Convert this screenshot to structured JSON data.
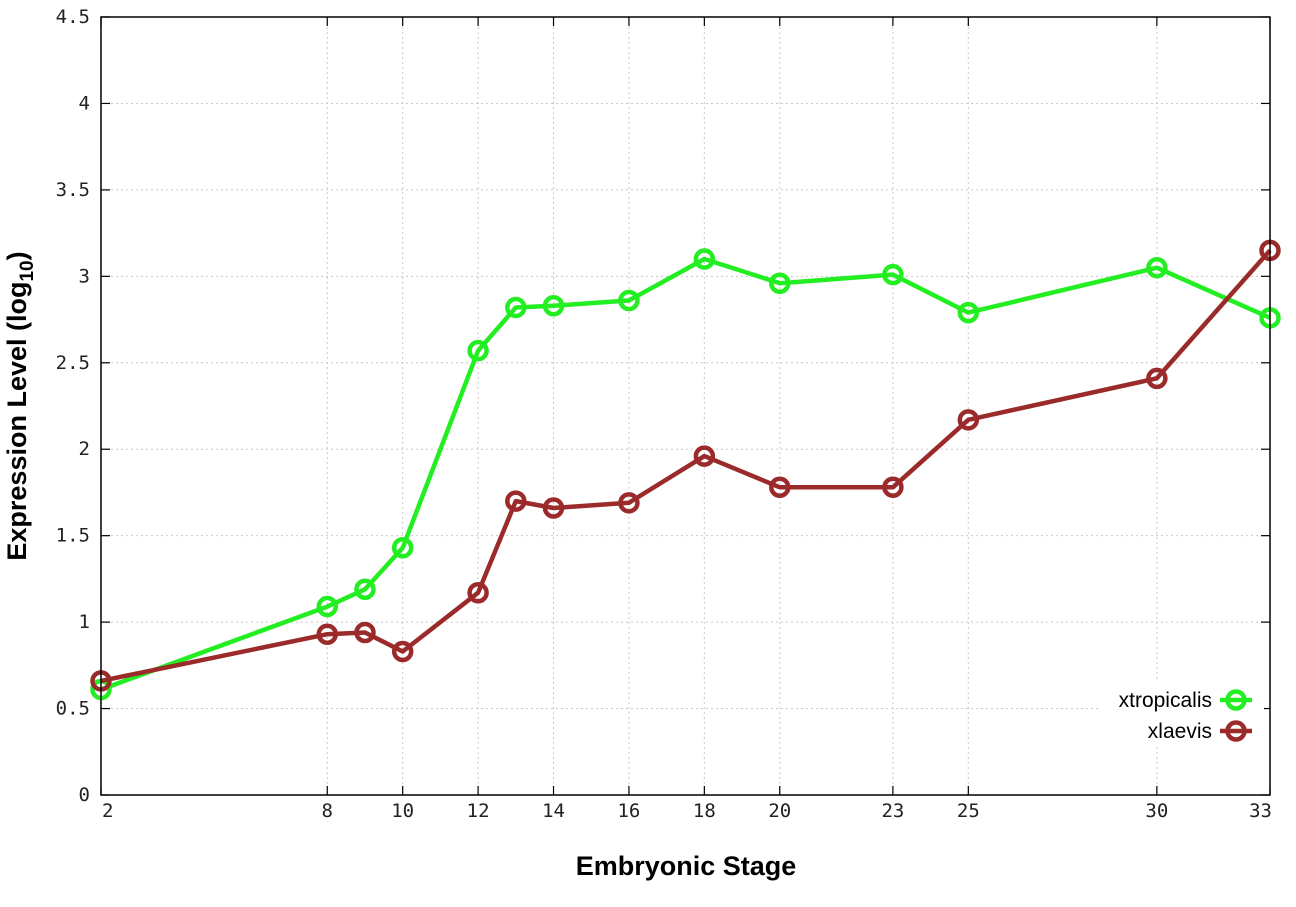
{
  "chart_data": {
    "type": "line",
    "title": "",
    "xlabel": "Embryonic Stage",
    "ylabel_main": "Expression Level (log",
    "ylabel_sub": "10",
    "ylabel_close": ")",
    "x": [
      2,
      8,
      9,
      10,
      12,
      13,
      14,
      16,
      18,
      20,
      23,
      25,
      30,
      33
    ],
    "xticks": [
      2,
      8,
      10,
      12,
      14,
      16,
      18,
      20,
      23,
      25,
      30,
      33
    ],
    "xtick_labels": [
      "2",
      "8",
      "10",
      "12",
      "14",
      "16",
      "18",
      "20",
      "23",
      "25",
      "30",
      "33"
    ],
    "xlim": [
      2,
      33
    ],
    "ylim": [
      0,
      4.5
    ],
    "yticks": [
      0,
      0.5,
      1,
      1.5,
      2,
      2.5,
      3,
      3.5,
      4,
      4.5
    ],
    "ytick_labels": [
      "0",
      "0.5",
      "1",
      "1.5",
      "2",
      "2.5",
      "3",
      "3.5",
      "4",
      "4.5"
    ],
    "grid": true,
    "legend_position": "bottom-right",
    "series": [
      {
        "name": "xtropicalis",
        "color": "#22ee22",
        "values": [
          0.61,
          1.09,
          1.19,
          1.43,
          2.57,
          2.82,
          2.83,
          2.86,
          3.1,
          2.96,
          3.01,
          2.79,
          3.05,
          2.76
        ]
      },
      {
        "name": "xlaevis",
        "color": "#9b2b2b",
        "values": [
          0.66,
          0.93,
          0.94,
          0.83,
          1.17,
          1.7,
          1.66,
          1.69,
          1.96,
          1.78,
          1.78,
          2.17,
          2.41,
          3.15
        ]
      }
    ]
  }
}
